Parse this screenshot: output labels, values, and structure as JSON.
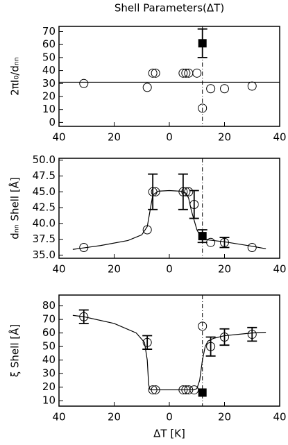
{
  "chart_data": [
    {
      "type": "scatter",
      "title": "Shell Parameters(ΔT)",
      "y_label": "2πI₀/dₙₙ",
      "xlim": [
        -40,
        40
      ],
      "xticks": [
        {
          "value": -40,
          "label": "40"
        },
        {
          "value": -20,
          "label": "20"
        },
        0,
        20,
        40
      ],
      "ylim": [
        -3,
        74
      ],
      "yticks": [
        0,
        10,
        20,
        30,
        40,
        50,
        60,
        70
      ],
      "hline": 31,
      "vline": 12,
      "series": [
        {
          "marker": "circle",
          "color": "#000000",
          "x": [
            -31,
            -8,
            -6,
            -5,
            5,
            6,
            7,
            10,
            12,
            15,
            20,
            30
          ],
          "values": [
            30,
            27,
            38,
            38,
            38,
            38,
            38,
            38,
            11,
            26,
            26,
            28
          ]
        },
        {
          "marker": "square",
          "color": "#000000",
          "x": [
            12
          ],
          "values": [
            61
          ],
          "errors": [
            11
          ]
        }
      ]
    },
    {
      "type": "scatter",
      "y_label": "dₙₙ Shell [Å]",
      "xlim": [
        -40,
        40
      ],
      "xticks": [
        {
          "value": -40,
          "label": "40"
        },
        {
          "value": -20,
          "label": "20"
        },
        0,
        20,
        40
      ],
      "ylim": [
        34.5,
        50.3
      ],
      "yticks": [
        {
          "value": 35,
          "label": "35.0"
        },
        37.5,
        {
          "value": 40,
          "label": "40.0"
        },
        42.5,
        {
          "value": 45,
          "label": "45.0"
        },
        47.5,
        {
          "value": 50,
          "label": "50.0"
        }
      ],
      "vline": 12,
      "series": [
        {
          "marker": "line",
          "color": "#000000",
          "x": [
            -35,
            -25,
            -15,
            -10,
            -8,
            -7,
            -6,
            -4,
            0,
            4,
            6,
            7,
            8,
            9,
            10,
            11,
            12,
            14,
            20,
            30,
            35
          ],
          "values": [
            35.9,
            36.5,
            37.3,
            38.2,
            39.5,
            42,
            44.5,
            45.1,
            45.2,
            45.1,
            44.8,
            44,
            42,
            40.5,
            39,
            38.2,
            37.8,
            37.4,
            37.1,
            36.4,
            36
          ]
        },
        {
          "marker": "circle",
          "color": "#000000",
          "x": [
            -31,
            -8,
            -6,
            -5,
            5,
            6,
            7,
            9,
            15,
            20,
            30
          ],
          "values": [
            36.2,
            39,
            45,
            45,
            45,
            45,
            45,
            43,
            37,
            37,
            36.2
          ],
          "errors": [
            null,
            null,
            2.8,
            null,
            2.8,
            null,
            null,
            2.2,
            null,
            0.8,
            null
          ]
        },
        {
          "marker": "square",
          "color": "#000000",
          "x": [
            12
          ],
          "values": [
            38
          ],
          "errors": [
            1
          ]
        }
      ]
    },
    {
      "type": "scatter",
      "y_label": "ξ Shell [Å]",
      "x_label": "ΔT [K]",
      "xlim": [
        -40,
        40
      ],
      "xticks": [
        {
          "value": -40,
          "label": "40"
        },
        {
          "value": -20,
          "label": "20"
        },
        0,
        20,
        40
      ],
      "ylim": [
        6,
        88
      ],
      "yticks": [
        10,
        20,
        30,
        40,
        50,
        60,
        70,
        80
      ],
      "vline": 12,
      "series": [
        {
          "marker": "line",
          "color": "#000000",
          "x": [
            -35,
            -31,
            -20,
            -12,
            -9,
            -8,
            -7.5,
            -7,
            -5,
            0,
            5,
            9,
            10,
            11,
            12,
            13,
            14,
            16,
            20,
            30,
            35
          ],
          "values": [
            73,
            72,
            67,
            60,
            53,
            40,
            22,
            18,
            18,
            18,
            18,
            18,
            19,
            25,
            40,
            50,
            54,
            56,
            58,
            60,
            60.5
          ]
        },
        {
          "marker": "circle",
          "color": "#000000",
          "x": [
            -31,
            -8,
            -6,
            -5,
            5,
            6,
            7,
            9,
            12,
            15,
            20,
            30
          ],
          "values": [
            72,
            53,
            18,
            18,
            18,
            18,
            18,
            18,
            65,
            50,
            57,
            59
          ],
          "errors": [
            5,
            5,
            null,
            null,
            null,
            null,
            null,
            null,
            null,
            7,
            6,
            5
          ]
        },
        {
          "marker": "square",
          "color": "#000000",
          "x": [
            12
          ],
          "values": [
            16
          ]
        }
      ]
    }
  ]
}
